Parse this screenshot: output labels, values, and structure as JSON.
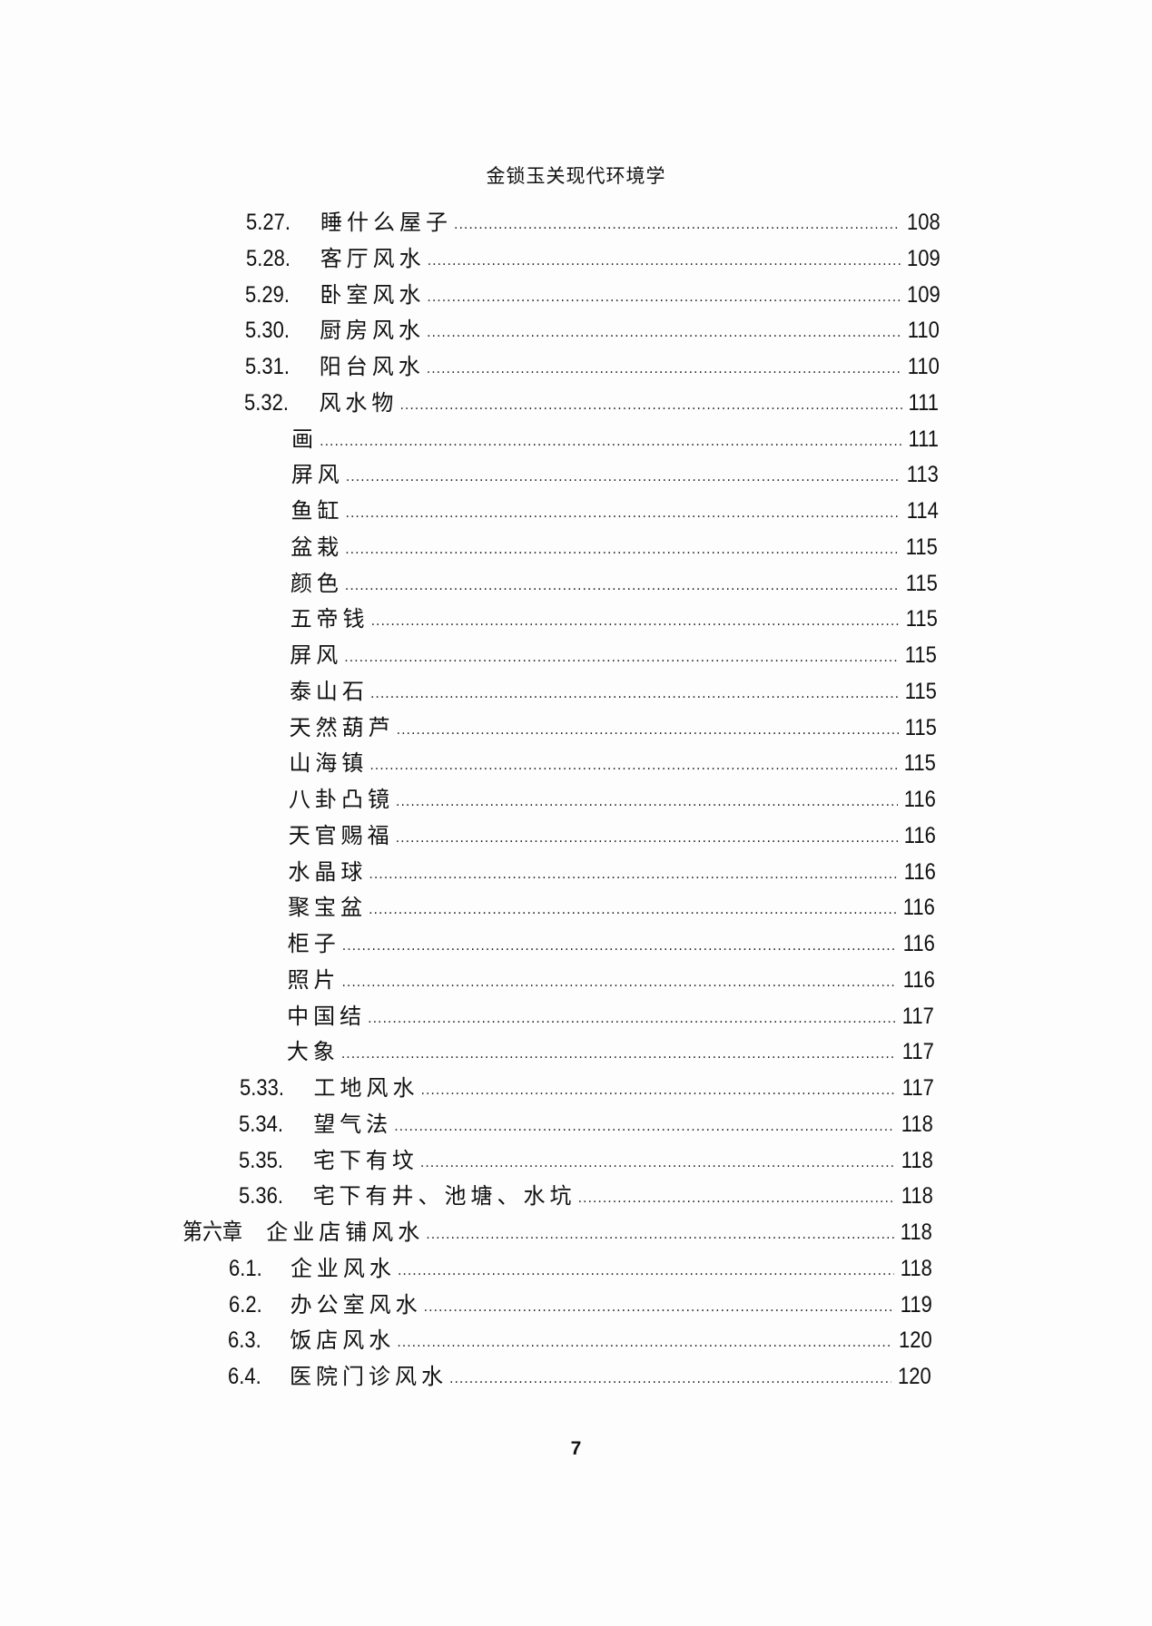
{
  "header": {
    "title": "金锁玉关现代环境学"
  },
  "toc": [
    {
      "level": "section",
      "number": "5.27.",
      "title": "睡什么屋子",
      "page": "108"
    },
    {
      "level": "section",
      "number": "5.28.",
      "title": "客厅风水",
      "page": "109"
    },
    {
      "level": "section",
      "number": "5.29.",
      "title": "卧室风水",
      "page": "109"
    },
    {
      "level": "section",
      "number": "5.30.",
      "title": "厨房风水",
      "page": "110"
    },
    {
      "level": "section",
      "number": "5.31.",
      "title": "阳台风水",
      "page": "110"
    },
    {
      "level": "section",
      "number": "5.32.",
      "title": "风水物",
      "page": "111"
    },
    {
      "level": "sub",
      "number": "",
      "title": "画",
      "page": "111"
    },
    {
      "level": "sub",
      "number": "",
      "title": "屏风",
      "page": "113"
    },
    {
      "level": "sub",
      "number": "",
      "title": "鱼缸",
      "page": "114"
    },
    {
      "level": "sub",
      "number": "",
      "title": "盆栽",
      "page": "115"
    },
    {
      "level": "sub",
      "number": "",
      "title": "颜色",
      "page": "115"
    },
    {
      "level": "sub",
      "number": "",
      "title": "五帝钱",
      "page": "115"
    },
    {
      "level": "sub",
      "number": "",
      "title": "屏风",
      "page": "115"
    },
    {
      "level": "sub",
      "number": "",
      "title": "泰山石",
      "page": "115"
    },
    {
      "level": "sub",
      "number": "",
      "title": "天然葫芦",
      "page": "115"
    },
    {
      "level": "sub",
      "number": "",
      "title": "山海镇",
      "page": "115"
    },
    {
      "level": "sub",
      "number": "",
      "title": "八卦凸镜",
      "page": "116"
    },
    {
      "level": "sub",
      "number": "",
      "title": "天官赐福",
      "page": "116"
    },
    {
      "level": "sub",
      "number": "",
      "title": "水晶球",
      "page": "116"
    },
    {
      "level": "sub",
      "number": "",
      "title": "聚宝盆",
      "page": "116"
    },
    {
      "level": "sub",
      "number": "",
      "title": "柜子",
      "page": "116"
    },
    {
      "level": "sub",
      "number": "",
      "title": "照片",
      "page": "116"
    },
    {
      "level": "sub",
      "number": "",
      "title": "中国结",
      "page": "117"
    },
    {
      "level": "sub",
      "number": "",
      "title": "大象",
      "page": "117"
    },
    {
      "level": "section",
      "number": "5.33.",
      "title": "工地风水",
      "page": "117"
    },
    {
      "level": "section",
      "number": "5.34.",
      "title": "望气法",
      "page": "118"
    },
    {
      "level": "section",
      "number": "5.35.",
      "title": "宅下有坟",
      "page": "118"
    },
    {
      "level": "section",
      "number": "5.36.",
      "title": "宅下有井、池塘、水坑",
      "page": "118"
    },
    {
      "level": "chapter",
      "number": "第六章",
      "title": "企业店铺风水",
      "page": "118"
    },
    {
      "level": "section6",
      "number": "6.1.",
      "title": "企业风水",
      "page": "118"
    },
    {
      "level": "section6",
      "number": "6.2.",
      "title": "办公室风水",
      "page": "119"
    },
    {
      "level": "section6",
      "number": "6.3.",
      "title": "饭店风水",
      "page": "120"
    },
    {
      "level": "section6",
      "number": "6.4.",
      "title": "医院门诊风水",
      "page": "120"
    }
  ],
  "footer": {
    "page_number": "7"
  }
}
